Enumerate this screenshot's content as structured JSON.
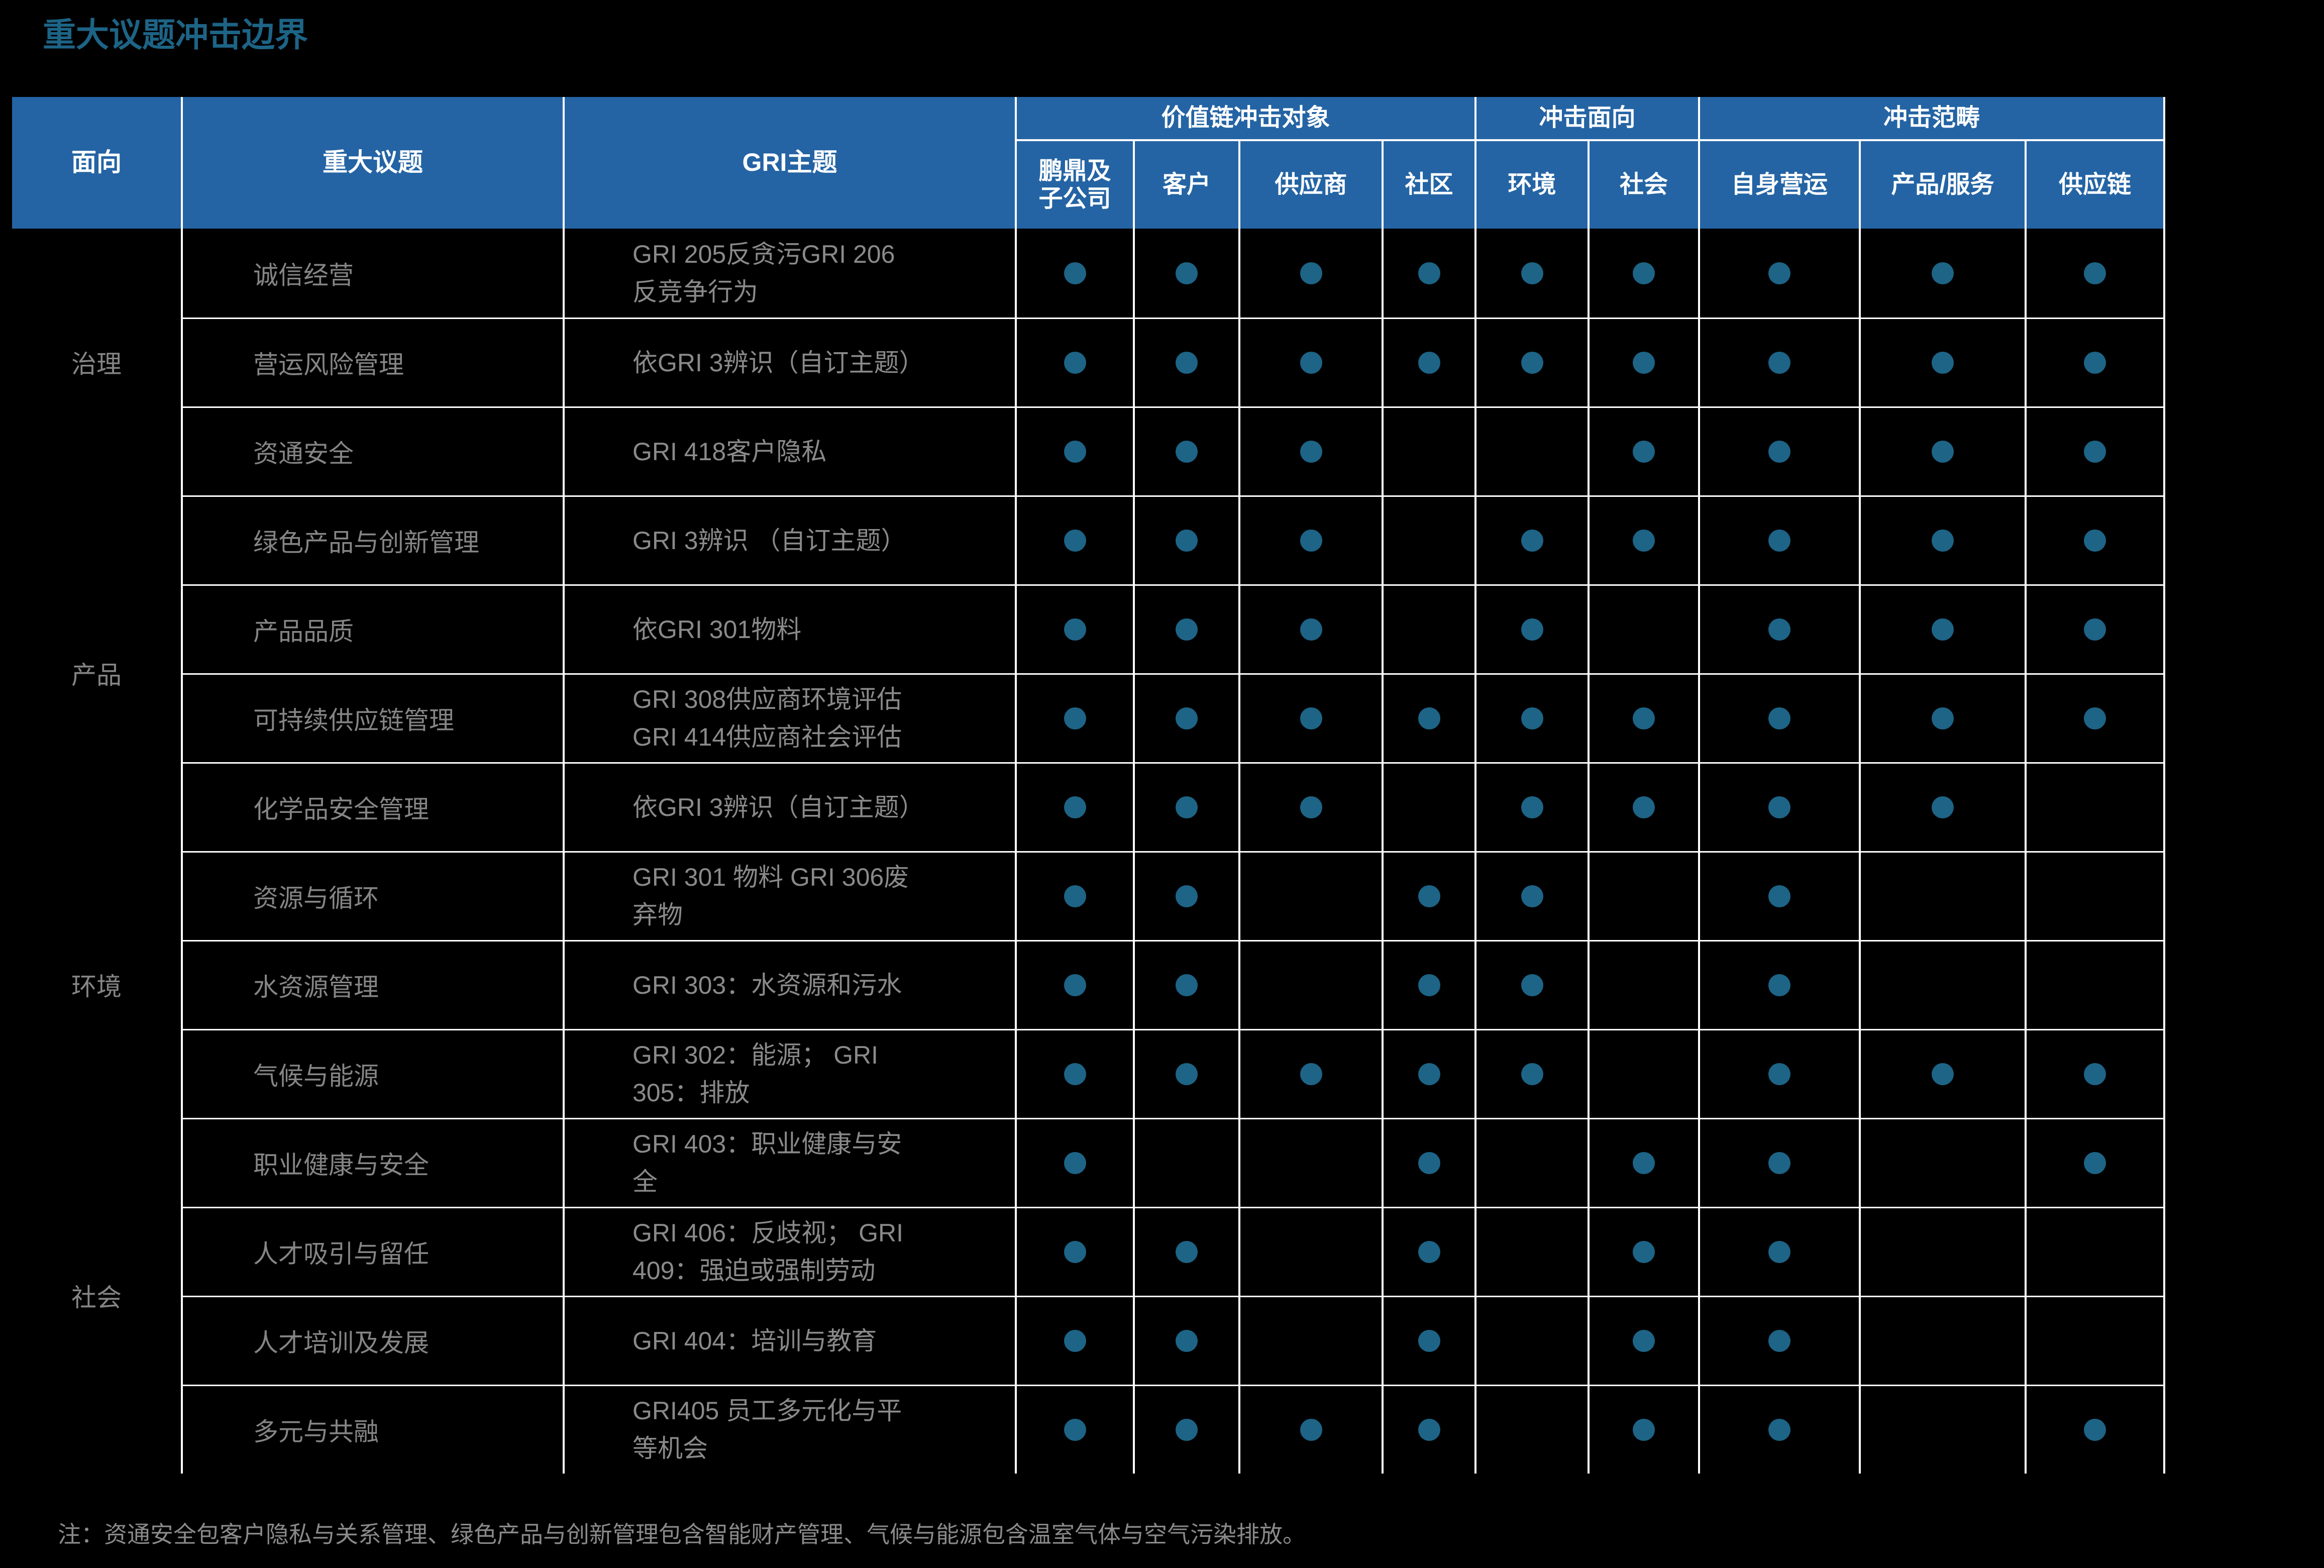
{
  "title": "重大议题冲击边界",
  "note": "注：资通安全包客户隐私与关系管理、绿色产品与创新管理包含智能财产管理、气候与能源包含温室气体与空气污染排放。",
  "colors": {
    "background": "#000000",
    "header_blue": "#2464a4",
    "accent_teal": "#1d6486",
    "body_text_gray": "#8a8a8a",
    "grid_line": "#ffffff"
  },
  "table": {
    "main_headers": {
      "aspect": "面向",
      "issue": "重大议题",
      "gri": "GRI主题"
    },
    "header_groups": [
      {
        "label": "价值链冲击对象",
        "cols": [
          "鹏鼎及\n子公司",
          "客户",
          "供应商",
          "社区"
        ]
      },
      {
        "label": "冲击面向",
        "cols": [
          "环境",
          "社会"
        ]
      },
      {
        "label": "冲击范畴",
        "cols": [
          "自身营运",
          "产品/服务",
          "供应链"
        ]
      }
    ],
    "aspect_groups": [
      {
        "label": "治理",
        "row_span": 3
      },
      {
        "label": "产品",
        "row_span": 4
      },
      {
        "label": "环境",
        "row_span": 3
      },
      {
        "label": "社会",
        "row_span": 4
      }
    ],
    "rows": [
      {
        "issue": "诚信经营",
        "gri": "GRI 205反贪污GRI 206\n反竞争行为",
        "dots": [
          1,
          1,
          1,
          1,
          1,
          1,
          1,
          1,
          1
        ]
      },
      {
        "issue": "营运风险管理",
        "gri": "依GRI 3辨识（自订主题）",
        "dots": [
          1,
          1,
          1,
          1,
          1,
          1,
          1,
          1,
          1
        ]
      },
      {
        "issue": "资通安全",
        "gri": "GRI 418客户隐私",
        "dots": [
          1,
          1,
          1,
          0,
          0,
          1,
          1,
          1,
          1
        ]
      },
      {
        "issue": "绿色产品与创新管理",
        "gri": "GRI 3辨识 （自订主题）",
        "dots": [
          1,
          1,
          1,
          0,
          1,
          1,
          1,
          1,
          1
        ]
      },
      {
        "issue": "产品品质",
        "gri": "依GRI 301物料",
        "dots": [
          1,
          1,
          1,
          0,
          1,
          0,
          1,
          1,
          1
        ]
      },
      {
        "issue": "可持续供应链管理",
        "gri": "GRI 308供应商环境评估\nGRI 414供应商社会评估",
        "dots": [
          1,
          1,
          1,
          1,
          1,
          1,
          1,
          1,
          1
        ]
      },
      {
        "issue": "化学品安全管理",
        "gri": "依GRI 3辨识（自订主题）",
        "dots": [
          1,
          1,
          1,
          0,
          1,
          1,
          1,
          1,
          0
        ]
      },
      {
        "issue": "资源与循环",
        "gri": "GRI 301 物料 GRI 306废\n弃物",
        "dots": [
          1,
          1,
          0,
          1,
          1,
          0,
          1,
          0,
          0
        ]
      },
      {
        "issue": "水资源管理",
        "gri": "GRI 303：水资源和污水",
        "dots": [
          1,
          1,
          0,
          1,
          1,
          0,
          1,
          0,
          0
        ]
      },
      {
        "issue": "气候与能源",
        "gri": "GRI 302：能源； GRI\n305：排放",
        "dots": [
          1,
          1,
          1,
          1,
          1,
          0,
          1,
          1,
          1
        ]
      },
      {
        "issue": "职业健康与安全",
        "gri": "GRI 403：职业健康与安\n全",
        "dots": [
          1,
          0,
          0,
          1,
          0,
          1,
          1,
          0,
          1
        ]
      },
      {
        "issue": "人才吸引与留任",
        "gri": "GRI 406：反歧视； GRI\n409：强迫或强制劳动",
        "dots": [
          1,
          1,
          0,
          1,
          0,
          1,
          1,
          0,
          0
        ]
      },
      {
        "issue": "人才培训及发展",
        "gri": "GRI 404：培训与教育",
        "dots": [
          1,
          1,
          0,
          1,
          0,
          1,
          1,
          0,
          0
        ]
      },
      {
        "issue": "多元与共融",
        "gri": "GRI405 员工多元化与平\n等机会",
        "dots": [
          1,
          1,
          1,
          1,
          0,
          1,
          1,
          0,
          1
        ]
      }
    ]
  }
}
